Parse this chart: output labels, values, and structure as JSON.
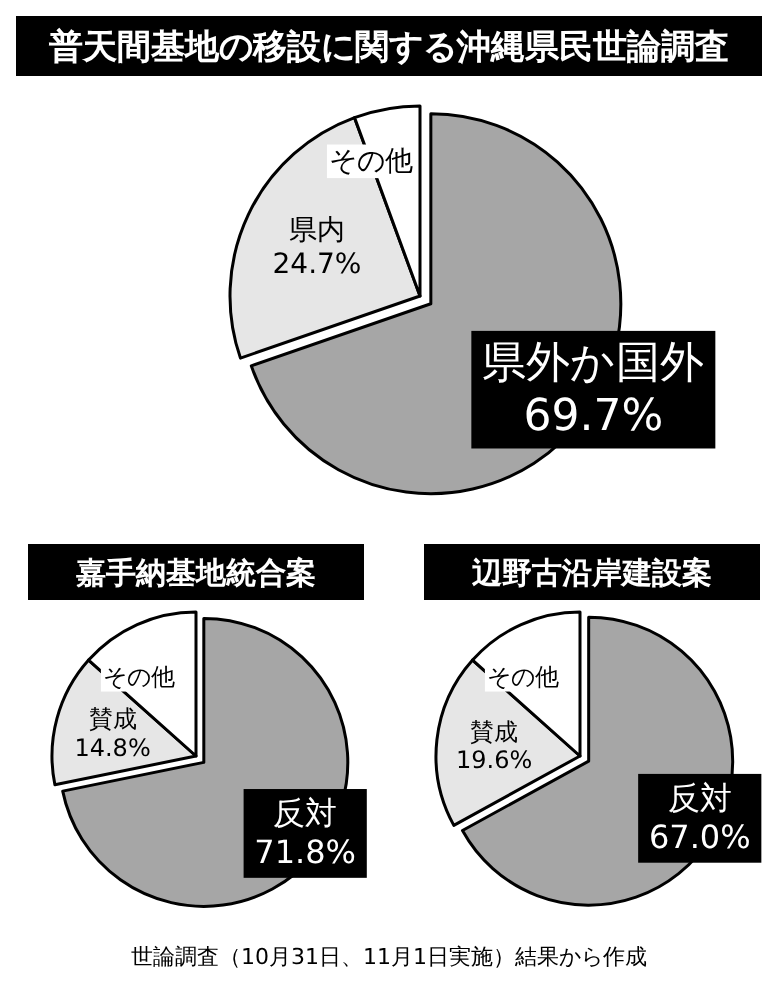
{
  "chart_data": [
    {
      "type": "pie",
      "title": "普天間基地の移設に関する沖縄県民世論調査",
      "categories": [
        "県外か国外",
        "県内",
        "その他"
      ],
      "values": [
        69.7,
        24.7,
        5.6
      ],
      "colors": [
        "#a6a6a6",
        "#e6e6e6",
        "#ffffff"
      ],
      "value_labels": [
        "69.7%",
        "24.7%",
        null
      ]
    },
    {
      "type": "pie",
      "title": "嘉手納基地統合案",
      "categories": [
        "反対",
        "賛成",
        "その他"
      ],
      "values": [
        71.8,
        14.8,
        13.4
      ],
      "colors": [
        "#a6a6a6",
        "#e6e6e6",
        "#ffffff"
      ],
      "value_labels": [
        "71.8%",
        "14.8%",
        null
      ]
    },
    {
      "type": "pie",
      "title": "辺野古沿岸建設案",
      "categories": [
        "反対",
        "賛成",
        "その他"
      ],
      "values": [
        67.0,
        19.6,
        13.4
      ],
      "colors": [
        "#a6a6a6",
        "#e6e6e6",
        "#ffffff"
      ],
      "value_labels": [
        "67.0%",
        "19.6%",
        null
      ],
      "annotations": [
        "世論調査（10月31日、11月1日実施）結果から作成"
      ]
    }
  ]
}
